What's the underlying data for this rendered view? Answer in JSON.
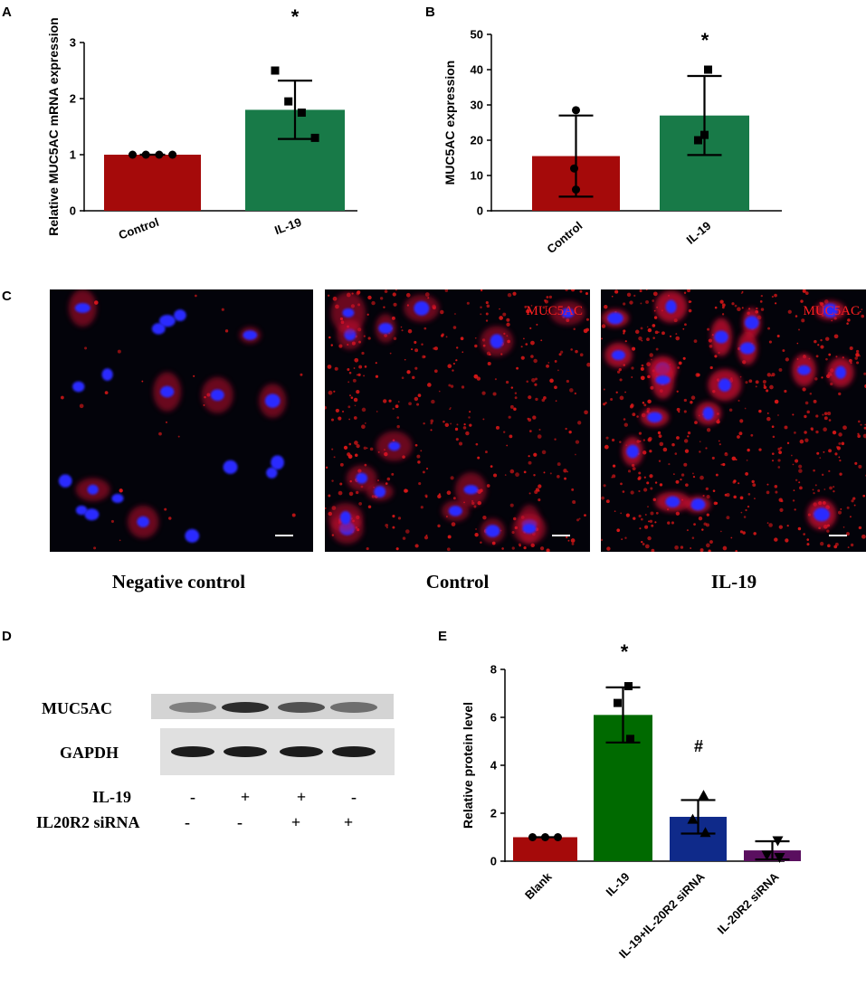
{
  "panels": {
    "A": "A",
    "B": "B",
    "C": "C",
    "D": "D",
    "E": "E"
  },
  "significance": {
    "A": "*",
    "B": "*",
    "E_star": "*",
    "E_hash": "#"
  },
  "chart_data": [
    {
      "id": "A",
      "type": "bar",
      "categories": [
        "Control",
        "IL-19"
      ],
      "values": [
        1.0,
        1.8
      ],
      "error": [
        0,
        0.52
      ],
      "points": [
        [
          1.0,
          1.0,
          1.0,
          1.0
        ],
        [
          2.5,
          1.95,
          1.75,
          1.3
        ]
      ],
      "markers": [
        "circle",
        "square"
      ],
      "colors": [
        "#a50a0a",
        "#187a48"
      ],
      "ylabel": "Relative MUC5AC mRNA expression",
      "xlabel": "",
      "ylim": [
        0,
        3
      ],
      "yticks": [
        0,
        1,
        2,
        3
      ],
      "annotation": "*"
    },
    {
      "id": "B",
      "type": "bar",
      "categories": [
        "Control",
        "IL-19"
      ],
      "values": [
        15.5,
        27
      ],
      "error": [
        11.5,
        11.2
      ],
      "points": [
        [
          28.5,
          12,
          6
        ],
        [
          40,
          21.5,
          20
        ]
      ],
      "markers": [
        "circle",
        "square"
      ],
      "colors": [
        "#a50a0a",
        "#187a48"
      ],
      "ylabel": "MUC5AC expression",
      "xlabel": "",
      "ylim": [
        0,
        50
      ],
      "yticks": [
        0,
        10,
        20,
        30,
        40,
        50
      ],
      "annotation": "*"
    },
    {
      "id": "E",
      "type": "bar",
      "categories": [
        "Blank",
        "IL-19",
        "IL-19+IL-20R2 siRNA",
        "IL-20R2 siRNA"
      ],
      "values": [
        1.0,
        6.1,
        1.85,
        0.45
      ],
      "error": [
        0,
        1.15,
        0.7,
        0.38
      ],
      "points": [
        [
          1.0,
          1.0,
          1.0
        ],
        [
          7.3,
          6.6,
          5.1
        ],
        [
          2.75,
          1.75,
          1.2
        ],
        [
          0.85,
          0.25,
          0.15
        ]
      ],
      "markers": [
        "circle",
        "square",
        "triangle-up",
        "triangle-down"
      ],
      "colors": [
        "#a50a0a",
        "#006a00",
        "#0f2a8a",
        "#5a0f5f"
      ],
      "ylabel": "Relative protein level",
      "xlabel": "",
      "ylim": [
        0,
        8
      ],
      "yticks": [
        0,
        2,
        4,
        6,
        8
      ],
      "annotations": [
        "*",
        "#"
      ]
    }
  ],
  "microscopy": {
    "images": [
      {
        "caption": "Negative control",
        "label": ""
      },
      {
        "caption": "Control",
        "label": "MUC5AC"
      },
      {
        "caption": "IL-19",
        "label": "MUC5AC"
      }
    ]
  },
  "western_blot": {
    "bands": [
      "MUC5AC",
      "GAPDH"
    ],
    "conditions": [
      {
        "name": "IL-19",
        "values": [
          "-",
          "+",
          "+",
          "-"
        ]
      },
      {
        "name": "IL20R2 siRNA",
        "values": [
          "-",
          "-",
          "+",
          "+"
        ]
      }
    ],
    "muc5ac_intensity": [
      0.45,
      0.9,
      0.7,
      0.55
    ],
    "gapdh_intensity": [
      0.95,
      0.95,
      0.95,
      0.95
    ]
  },
  "colors": {
    "red_bar": "#a50a0a",
    "green_bar": "#187a48",
    "dark_green_bar": "#006a00",
    "navy_bar": "#0f2a8a",
    "purple_bar": "#5a0f5f",
    "nuclei": "#2a2aff",
    "stain": "#ff1a1a"
  }
}
